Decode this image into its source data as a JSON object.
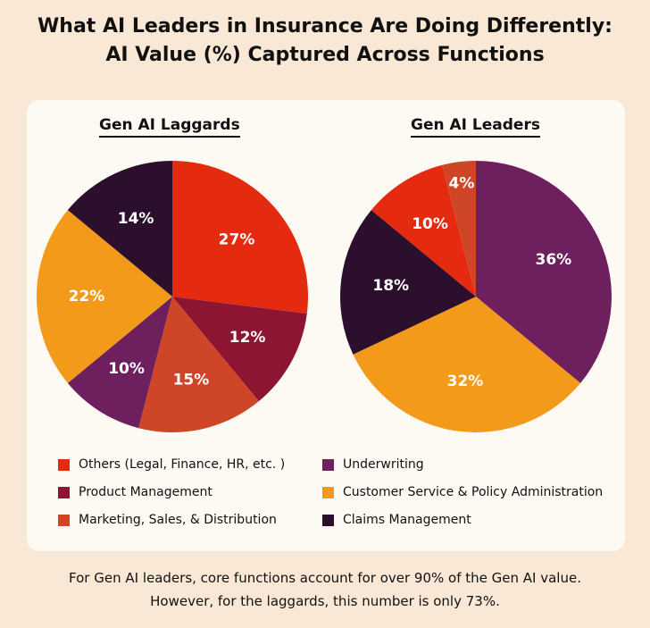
{
  "title_line1": "What AI Leaders in Insurance Are Doing Differently:",
  "title_line2": "AI Value (%) Captured Across Functions",
  "colors": {
    "others": "#e42a0f",
    "product": "#8d1532",
    "marketing": "#cf4528",
    "underwriting": "#6e1f5e",
    "customer": "#f49a1a",
    "claims": "#2c0e2d"
  },
  "legend": [
    {
      "key": "others",
      "label": "Others (Legal, Finance, HR, etc. )"
    },
    {
      "key": "underwriting",
      "label": "Underwriting"
    },
    {
      "key": "product",
      "label": "Product Management"
    },
    {
      "key": "customer",
      "label": "Customer Service & Policy Administration"
    },
    {
      "key": "marketing",
      "label": "Marketing, Sales, & Distribution"
    },
    {
      "key": "claims",
      "label": "Claims Management"
    }
  ],
  "chart_data": [
    {
      "type": "pie",
      "title": "Gen AI Laggards",
      "slices": [
        {
          "key": "others",
          "label": "Others (Legal, Finance, HR, etc. )",
          "value": 27,
          "text": "27%"
        },
        {
          "key": "product",
          "label": "Product Management",
          "value": 12,
          "text": "12%"
        },
        {
          "key": "marketing",
          "label": "Marketing, Sales, & Distribution",
          "value": 15,
          "text": "15%"
        },
        {
          "key": "underwriting",
          "label": "Underwriting",
          "value": 10,
          "text": "10%"
        },
        {
          "key": "customer",
          "label": "Customer Service & Policy Administration",
          "value": 22,
          "text": "22%"
        },
        {
          "key": "claims",
          "label": "Claims Management",
          "value": 14,
          "text": "14%"
        }
      ]
    },
    {
      "type": "pie",
      "title": "Gen AI Leaders",
      "slices": [
        {
          "key": "underwriting",
          "label": "Underwriting",
          "value": 36,
          "text": "36%"
        },
        {
          "key": "customer",
          "label": "Customer Service & Policy Administration",
          "value": 32,
          "text": "32%"
        },
        {
          "key": "claims",
          "label": "Claims Management",
          "value": 18,
          "text": "18%"
        },
        {
          "key": "others",
          "label": "Others (Legal, Finance, HR, etc. )",
          "value": 10,
          "text": "10%"
        },
        {
          "key": "marketing",
          "label": "Marketing, Sales, & Distribution",
          "value": 4,
          "text": "4%"
        }
      ]
    }
  ],
  "footer_line1": "For Gen AI leaders, core functions account for over 90% of the Gen AI value.",
  "footer_line2": "However, for the laggards, this number is only 73%."
}
